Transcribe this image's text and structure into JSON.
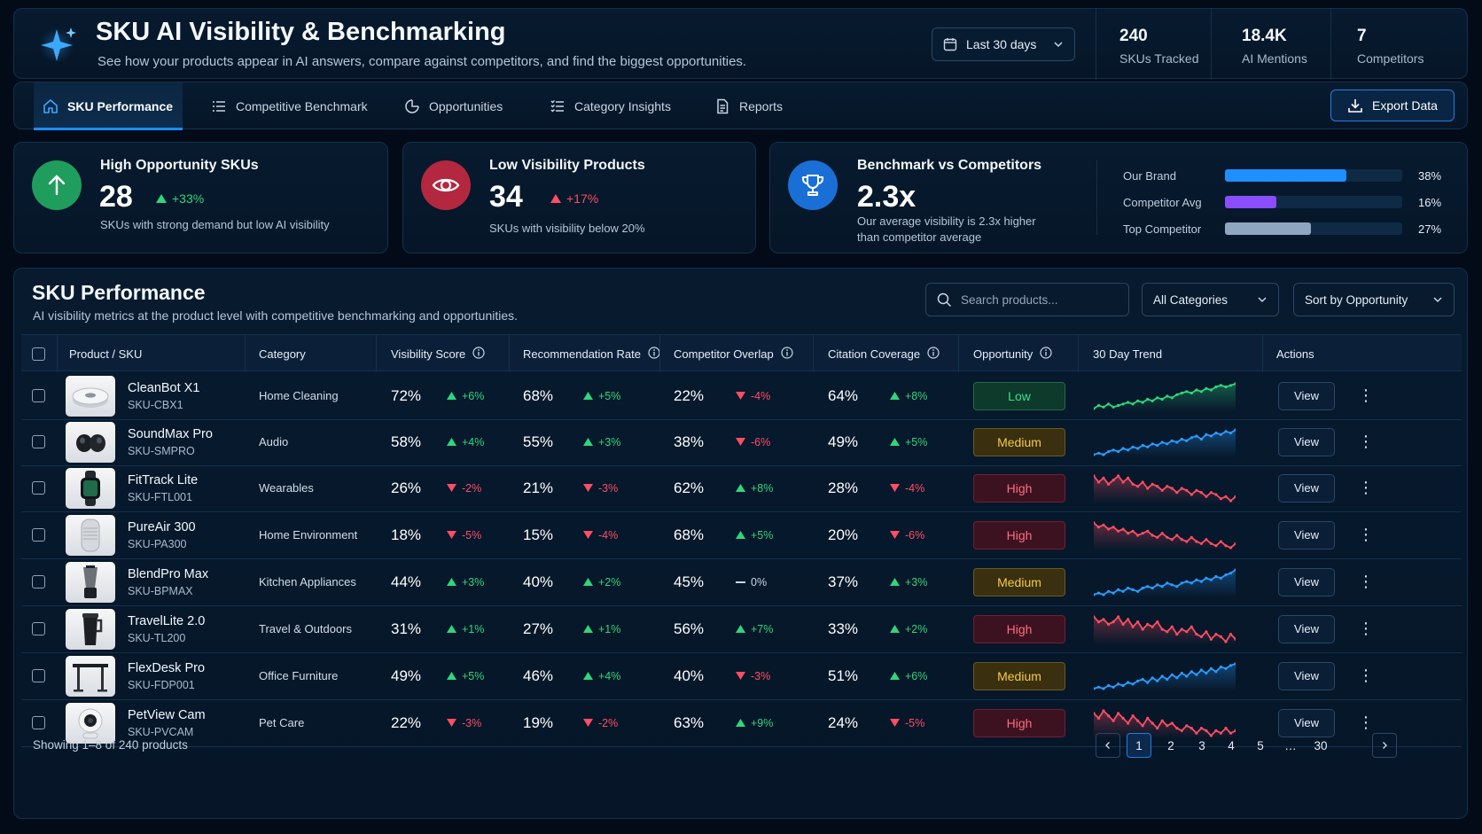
{
  "header": {
    "title": "SKU AI Visibility & Benchmarking",
    "subtitle": "See how your products appear in AI answers, compare against competitors, and find the biggest opportunities.",
    "date_range": "Last 30 days",
    "kpis": [
      {
        "value": "240",
        "label": "SKUs Tracked"
      },
      {
        "value": "18.4K",
        "label": "AI Mentions"
      },
      {
        "value": "7",
        "label": "Competitors"
      }
    ]
  },
  "nav": {
    "tabs": [
      {
        "label": "SKU Performance",
        "icon": "home-icon",
        "active": true
      },
      {
        "label": "Competitive Benchmark",
        "icon": "list-icon"
      },
      {
        "label": "Opportunities",
        "icon": "target-icon"
      },
      {
        "label": "Category Insights",
        "icon": "list-check-icon"
      },
      {
        "label": "Reports",
        "icon": "document-icon"
      }
    ],
    "export_label": "Export Data"
  },
  "cards": {
    "high_opp": {
      "title": "High Opportunity SKUs",
      "value": "28",
      "delta": "+33%",
      "desc": "SKUs with strong demand but low AI visibility",
      "color": "#1f9d5c"
    },
    "low_vis": {
      "title": "Low Visibility Products",
      "value": "34",
      "delta": "+17%",
      "desc": "SKUs with visibility below 20%",
      "color": "#b3283f"
    },
    "benchmark": {
      "title": "Benchmark vs Competitors",
      "value": "2.3x",
      "desc_line1": "Our average visibility is 2.3x higher",
      "desc_line2": "than competitor average",
      "bars": [
        {
          "label": "Our Brand",
          "pct": "38%",
          "value": 38,
          "color": "#1e8fff"
        },
        {
          "label": "Competitor Avg",
          "pct": "16%",
          "value": 16,
          "color": "#8a4dff"
        },
        {
          "label": "Top Competitor",
          "pct": "27%",
          "value": 27,
          "color": "#8ea6c0"
        }
      ]
    }
  },
  "table": {
    "title": "SKU Performance",
    "subtitle": "AI visibility metrics at the product level with competitive benchmarking and opportunities.",
    "search_placeholder": "Search products...",
    "category_filter": "All Categories",
    "sort": "Sort by Opportunity",
    "columns": [
      "Product / SKU",
      "Category",
      "Visibility Score",
      "Recommendation Rate",
      "Competitor Overlap",
      "Citation Coverage",
      "Opportunity",
      "30 Day Trend",
      "Actions"
    ],
    "view_label": "View",
    "rows": [
      {
        "name": "CleanBot X1",
        "sku": "SKU-CBX1",
        "category": "Home Cleaning",
        "vis": "72%",
        "vis_d": "+6%",
        "vis_t": "up",
        "rec": "68%",
        "rec_d": "+5%",
        "rec_t": "up",
        "ovl": "22%",
        "ovl_d": "-4%",
        "ovl_t": "down",
        "cit": "64%",
        "cit_d": "+8%",
        "cit_t": "up",
        "opp": "Low",
        "trend": [
          3,
          5,
          4,
          6,
          4,
          5,
          6,
          7,
          6,
          8,
          7,
          9,
          8,
          10,
          9,
          11,
          10,
          12,
          13,
          14,
          13,
          15,
          14,
          16,
          15,
          17,
          18,
          17,
          18,
          19
        ],
        "img": "robot-vacuum-icon"
      },
      {
        "name": "SoundMax Pro",
        "sku": "SKU-SMPRO",
        "category": "Audio",
        "vis": "58%",
        "vis_d": "+4%",
        "vis_t": "up",
        "rec": "55%",
        "rec_d": "+3%",
        "rec_t": "up",
        "ovl": "38%",
        "ovl_d": "-6%",
        "ovl_t": "down",
        "cit": "49%",
        "cit_d": "+5%",
        "cit_t": "up",
        "opp": "Medium",
        "trend": [
          3,
          4,
          3,
          5,
          6,
          5,
          7,
          6,
          8,
          7,
          9,
          8,
          10,
          9,
          11,
          10,
          12,
          11,
          13,
          12,
          14,
          15,
          13,
          16,
          15,
          17,
          16,
          18,
          17,
          19
        ],
        "img": "earbuds-icon"
      },
      {
        "name": "FitTrack Lite",
        "sku": "SKU-FTL001",
        "category": "Wearables",
        "vis": "26%",
        "vis_d": "-2%",
        "vis_t": "down",
        "rec": "21%",
        "rec_d": "-3%",
        "rec_t": "down",
        "ovl": "62%",
        "ovl_d": "+8%",
        "ovl_t": "up",
        "cit": "28%",
        "cit_d": "-4%",
        "cit_t": "down",
        "opp": "High",
        "trend": [
          16,
          13,
          15,
          12,
          14,
          16,
          13,
          15,
          12,
          11,
          13,
          10,
          12,
          11,
          9,
          11,
          10,
          8,
          10,
          9,
          7,
          9,
          8,
          6,
          8,
          7,
          5,
          6,
          4,
          6
        ],
        "img": "smartwatch-icon"
      },
      {
        "name": "PureAir 300",
        "sku": "SKU-PA300",
        "category": "Home Environment",
        "vis": "18%",
        "vis_d": "-5%",
        "vis_t": "down",
        "rec": "15%",
        "rec_d": "-4%",
        "rec_t": "down",
        "ovl": "68%",
        "ovl_d": "+5%",
        "ovl_t": "up",
        "cit": "20%",
        "cit_d": "-6%",
        "cit_t": "down",
        "opp": "High",
        "trend": [
          17,
          15,
          16,
          14,
          15,
          13,
          14,
          12,
          13,
          11,
          12,
          13,
          11,
          10,
          12,
          10,
          9,
          11,
          9,
          8,
          10,
          8,
          7,
          9,
          7,
          6,
          8,
          6,
          5,
          7
        ],
        "img": "air-purifier-icon"
      },
      {
        "name": "BlendPro Max",
        "sku": "SKU-BPMAX",
        "category": "Kitchen Appliances",
        "vis": "44%",
        "vis_d": "+3%",
        "vis_t": "up",
        "rec": "40%",
        "rec_d": "+2%",
        "rec_t": "up",
        "ovl": "45%",
        "ovl_d": "0%",
        "ovl_t": "flat",
        "cit": "37%",
        "cit_d": "+3%",
        "cit_t": "up",
        "opp": "Medium",
        "trend": [
          4,
          5,
          4,
          6,
          5,
          7,
          6,
          8,
          7,
          6,
          8,
          9,
          8,
          10,
          9,
          11,
          10,
          9,
          11,
          12,
          11,
          13,
          12,
          14,
          13,
          15,
          14,
          16,
          17,
          19
        ],
        "img": "blender-icon"
      },
      {
        "name": "TravelLite 2.0",
        "sku": "SKU-TL200",
        "category": "Travel & Outdoors",
        "vis": "31%",
        "vis_d": "+1%",
        "vis_t": "up",
        "rec": "27%",
        "rec_d": "+1%",
        "rec_t": "up",
        "ovl": "56%",
        "ovl_d": "+7%",
        "ovl_t": "up",
        "cit": "33%",
        "cit_d": "+2%",
        "cit_t": "up",
        "opp": "High",
        "trend": [
          15,
          13,
          14,
          12,
          13,
          15,
          12,
          14,
          11,
          13,
          10,
          12,
          11,
          13,
          10,
          9,
          11,
          8,
          10,
          9,
          11,
          8,
          7,
          9,
          6,
          8,
          7,
          5,
          8,
          6
        ],
        "img": "tumbler-icon"
      },
      {
        "name": "FlexDesk Pro",
        "sku": "SKU-FDP001",
        "category": "Office Furniture",
        "vis": "49%",
        "vis_d": "+5%",
        "vis_t": "up",
        "rec": "46%",
        "rec_d": "+4%",
        "rec_t": "up",
        "ovl": "40%",
        "ovl_d": "-3%",
        "ovl_t": "down",
        "cit": "51%",
        "cit_d": "+6%",
        "cit_t": "up",
        "opp": "Medium",
        "trend": [
          3,
          4,
          3,
          5,
          4,
          6,
          5,
          7,
          6,
          8,
          9,
          7,
          10,
          8,
          11,
          9,
          12,
          10,
          13,
          11,
          14,
          12,
          15,
          13,
          16,
          14,
          17,
          16,
          18,
          19
        ],
        "img": "standing-desk-icon"
      },
      {
        "name": "PetView Cam",
        "sku": "SKU-PVCAM",
        "category": "Pet Care",
        "vis": "22%",
        "vis_d": "-3%",
        "vis_t": "down",
        "rec": "19%",
        "rec_d": "-2%",
        "rec_t": "down",
        "ovl": "63%",
        "ovl_d": "+9%",
        "ovl_t": "up",
        "cit": "24%",
        "cit_d": "-5%",
        "cit_t": "down",
        "opp": "High",
        "trend": [
          14,
          12,
          15,
          13,
          11,
          14,
          12,
          10,
          13,
          11,
          9,
          12,
          10,
          8,
          11,
          9,
          10,
          8,
          7,
          9,
          8,
          6,
          8,
          7,
          5,
          7,
          6,
          8,
          6,
          7
        ],
        "img": "pet-camera-icon"
      }
    ],
    "footer": "Showing 1–8 of 240 products",
    "pages": [
      "1",
      "2",
      "3",
      "4",
      "5",
      "…",
      "30"
    ]
  }
}
